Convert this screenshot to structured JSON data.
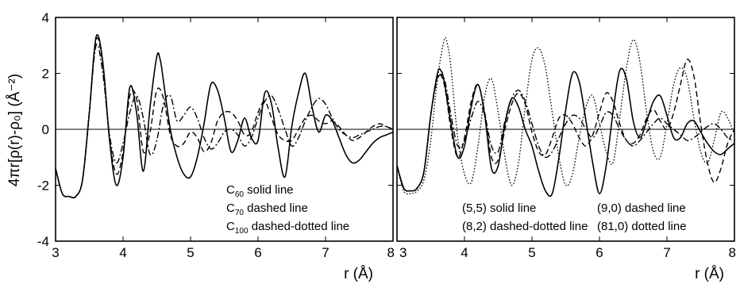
{
  "y_axis_label": "4πr[ρ(r)-ρ₀] (Å⁻²)",
  "chart_data": [
    {
      "type": "line",
      "panel": "left",
      "xlabel": "r (Å)",
      "ylabel": "4πr[ρ(r)-ρ₀] (Å⁻²)",
      "xlim": [
        3,
        8
      ],
      "ylim": [
        -4,
        4
      ],
      "xticks": [
        "3",
        "4",
        "5",
        "6",
        "7",
        "8"
      ],
      "yticks": [
        "-4",
        "-2",
        "0",
        "2",
        "4"
      ],
      "legend_position": "bottom-right",
      "legend": [
        {
          "label_main": "C",
          "label_sub": "60",
          "label_rest": " solid line"
        },
        {
          "label_main": "C",
          "label_sub": "70",
          "label_rest": " dashed line"
        },
        {
          "label_main": "C",
          "label_sub": "100",
          "label_rest": " dashed-dotted line"
        }
      ],
      "series": [
        {
          "style": "solid",
          "x": [
            3.0,
            3.1,
            3.2,
            3.3,
            3.4,
            3.5,
            3.6,
            3.7,
            3.8,
            3.9,
            4.0,
            4.1,
            4.2,
            4.3,
            4.4,
            4.5,
            4.55,
            4.6,
            4.7,
            4.8,
            4.9,
            5.0,
            5.1,
            5.2,
            5.3,
            5.4,
            5.5,
            5.6,
            5.7,
            5.8,
            5.9,
            6.0,
            6.1,
            6.2,
            6.3,
            6.4,
            6.5,
            6.6,
            6.7,
            6.8,
            6.9,
            7.0,
            7.1,
            7.2,
            7.3,
            7.4,
            7.5,
            7.6,
            7.7,
            7.8,
            7.9,
            8.0
          ],
          "y": [
            -1.4,
            -2.3,
            -2.4,
            -2.4,
            -1.8,
            0.6,
            3.3,
            2.4,
            -0.4,
            -2.0,
            -1.0,
            1.5,
            0.6,
            -1.5,
            0.8,
            2.6,
            2.5,
            1.7,
            0.0,
            -1.0,
            -1.6,
            -1.7,
            -1.0,
            0.2,
            1.6,
            1.4,
            0.4,
            -0.8,
            -0.4,
            0.4,
            -0.3,
            -0.4,
            1.3,
            0.9,
            -0.7,
            -1.7,
            0.1,
            1.3,
            2.0,
            0.8,
            -0.1,
            0.5,
            0.3,
            -0.3,
            -0.9,
            -1.2,
            -1.1,
            -0.8,
            -0.5,
            -0.3,
            -0.2,
            -0.1
          ]
        },
        {
          "style": "dashed",
          "x": [
            3.0,
            3.1,
            3.2,
            3.3,
            3.4,
            3.5,
            3.6,
            3.7,
            3.8,
            3.9,
            4.0,
            4.1,
            4.2,
            4.3,
            4.4,
            4.5,
            4.6,
            4.7,
            4.8,
            4.9,
            5.0,
            5.1,
            5.2,
            5.3,
            5.4,
            5.5,
            5.6,
            5.7,
            5.8,
            5.9,
            6.0,
            6.1,
            6.2,
            6.3,
            6.4,
            6.5,
            6.6,
            6.7,
            6.8,
            6.9,
            7.0,
            7.1,
            7.2,
            7.3,
            7.4,
            7.5,
            7.6,
            7.7,
            7.8,
            7.9,
            8.0
          ],
          "y": [
            -1.4,
            -2.3,
            -2.4,
            -2.4,
            -1.8,
            0.6,
            3.2,
            2.3,
            -0.3,
            -1.6,
            -0.8,
            1.2,
            1.1,
            -0.8,
            -0.1,
            1.4,
            1.1,
            -0.2,
            -0.6,
            -0.5,
            -0.1,
            -0.3,
            -0.8,
            -0.5,
            0.3,
            0.6,
            0.6,
            0.3,
            -0.2,
            -0.1,
            0.6,
            1.0,
            0.4,
            -0.2,
            -0.4,
            -0.4,
            0.0,
            0.4,
            0.5,
            0.3,
            0.2,
            0.3,
            0.1,
            -0.2,
            -0.4,
            -0.3,
            -0.1,
            0.1,
            0.2,
            0.1,
            0.0
          ]
        },
        {
          "style": "dashdot",
          "x": [
            3.0,
            3.1,
            3.2,
            3.3,
            3.4,
            3.5,
            3.6,
            3.7,
            3.8,
            3.9,
            4.0,
            4.1,
            4.2,
            4.3,
            4.4,
            4.5,
            4.6,
            4.7,
            4.8,
            4.9,
            5.0,
            5.1,
            5.2,
            5.3,
            5.4,
            5.5,
            5.6,
            5.7,
            5.8,
            5.9,
            6.0,
            6.1,
            6.2,
            6.3,
            6.4,
            6.5,
            6.6,
            6.7,
            6.8,
            6.9,
            7.0,
            7.1,
            7.2,
            7.3,
            7.4,
            7.5,
            7.6,
            7.7,
            7.8,
            7.9,
            8.0
          ],
          "y": [
            -1.4,
            -2.3,
            -2.4,
            -2.4,
            -1.8,
            0.6,
            3.0,
            2.0,
            -0.2,
            -1.2,
            -0.5,
            0.6,
            1.2,
            0.4,
            -0.9,
            -0.4,
            0.9,
            1.2,
            0.3,
            0.5,
            0.8,
            0.4,
            -0.3,
            -0.7,
            -0.5,
            -0.1,
            0.0,
            -0.2,
            -0.6,
            -0.3,
            0.4,
            1.0,
            1.2,
            0.7,
            0.0,
            -0.6,
            -0.3,
            0.3,
            0.8,
            1.1,
            0.9,
            0.4,
            0.0,
            -0.2,
            -0.3,
            -0.2,
            -0.1,
            0.0,
            0.1,
            0.1,
            0.0
          ]
        }
      ]
    },
    {
      "type": "line",
      "panel": "right",
      "xlabel": "r (Å)",
      "xlim": [
        3,
        8
      ],
      "ylim": [
        -4,
        4
      ],
      "xticks": [
        "3",
        "4",
        "5",
        "6",
        "7",
        "8"
      ],
      "legend_position": "bottom",
      "legend": [
        {
          "label": "(5,5) solid line"
        },
        {
          "label": "(9,0) dashed line"
        },
        {
          "label": "(8,2) dashed-dotted line"
        },
        {
          "label": "(81,0) dotted line"
        }
      ],
      "series": [
        {
          "style": "solid",
          "x": [
            3.0,
            3.1,
            3.2,
            3.3,
            3.4,
            3.5,
            3.6,
            3.65,
            3.7,
            3.8,
            3.9,
            4.0,
            4.1,
            4.2,
            4.3,
            4.4,
            4.5,
            4.6,
            4.7,
            4.8,
            4.9,
            5.0,
            5.1,
            5.2,
            5.3,
            5.4,
            5.5,
            5.6,
            5.7,
            5.8,
            5.9,
            6.0,
            6.1,
            6.2,
            6.3,
            6.4,
            6.5,
            6.6,
            6.7,
            6.8,
            6.9,
            7.0,
            7.1,
            7.2,
            7.3,
            7.4,
            7.5,
            7.6,
            7.7,
            7.8,
            7.9,
            8.0
          ],
          "y": [
            -1.3,
            -2.1,
            -2.2,
            -2.1,
            -1.5,
            0.5,
            2.0,
            2.1,
            1.7,
            0.2,
            -1.0,
            -0.6,
            0.8,
            1.6,
            0.5,
            -1.4,
            -1.3,
            0.2,
            1.1,
            0.8,
            0.0,
            -0.6,
            -1.5,
            -2.2,
            -2.3,
            -1.0,
            0.7,
            2.0,
            1.7,
            0.3,
            -1.2,
            -2.3,
            -1.3,
            0.6,
            2.1,
            1.8,
            0.3,
            -0.3,
            0.3,
            1.0,
            1.2,
            0.5,
            -0.3,
            -0.3,
            0.2,
            0.3,
            -0.1,
            -0.5,
            -0.8,
            -0.9,
            -0.7,
            -0.5
          ]
        },
        {
          "style": "dashed",
          "x": [
            3.0,
            3.1,
            3.2,
            3.3,
            3.4,
            3.5,
            3.6,
            3.7,
            3.8,
            3.9,
            4.0,
            4.1,
            4.2,
            4.3,
            4.4,
            4.5,
            4.6,
            4.7,
            4.8,
            4.9,
            5.0,
            5.1,
            5.2,
            5.3,
            5.4,
            5.5,
            5.6,
            5.7,
            5.8,
            5.9,
            6.0,
            6.1,
            6.2,
            6.3,
            6.4,
            6.5,
            6.6,
            6.7,
            6.8,
            6.9,
            7.0,
            7.1,
            7.2,
            7.3,
            7.4,
            7.5,
            7.6,
            7.7,
            7.8,
            7.9,
            8.0
          ],
          "y": [
            -1.3,
            -2.1,
            -2.2,
            -2.1,
            -1.5,
            0.5,
            1.9,
            1.6,
            0.0,
            -1.0,
            -0.3,
            1.0,
            1.6,
            0.6,
            -1.0,
            -1.1,
            0.0,
            0.9,
            1.3,
            0.9,
            -0.1,
            -0.8,
            -0.9,
            -0.3,
            0.4,
            0.5,
            0.2,
            -0.3,
            -0.6,
            -0.2,
            0.6,
            1.3,
            1.0,
            0.2,
            -0.4,
            -0.5,
            -0.2,
            0.4,
            0.7,
            0.3,
            0.0,
            0.6,
            1.6,
            2.5,
            1.9,
            0.2,
            -1.2,
            -1.9,
            -1.4,
            -0.5,
            0.0
          ]
        },
        {
          "style": "dashdot",
          "x": [
            3.0,
            3.1,
            3.2,
            3.3,
            3.4,
            3.5,
            3.6,
            3.7,
            3.8,
            3.9,
            4.0,
            4.1,
            4.2,
            4.3,
            4.4,
            4.5,
            4.6,
            4.7,
            4.8,
            4.9,
            5.0,
            5.1,
            5.2,
            5.3,
            5.4,
            5.5,
            5.6,
            5.7,
            5.8,
            5.9,
            6.0,
            6.1,
            6.2,
            6.3,
            6.4,
            6.5,
            6.6,
            6.7,
            6.8,
            6.9,
            7.0,
            7.1,
            7.2,
            7.3,
            7.4,
            7.5,
            7.6,
            7.7,
            7.8,
            7.9,
            8.0
          ],
          "y": [
            -1.3,
            -2.1,
            -2.2,
            -2.1,
            -1.5,
            0.5,
            1.8,
            1.8,
            0.5,
            -0.6,
            -0.4,
            0.4,
            1.0,
            0.5,
            -0.6,
            -0.8,
            0.3,
            1.1,
            1.4,
            1.0,
            0.2,
            -0.6,
            -1.0,
            -0.8,
            -0.3,
            0.2,
            0.5,
            0.4,
            0.0,
            -0.3,
            0.1,
            0.6,
            0.5,
            0.0,
            -0.4,
            -0.6,
            -0.4,
            -0.1,
            0.2,
            0.4,
            0.2,
            0.0,
            -0.2,
            -0.4,
            -0.3,
            -0.1,
            0.1,
            0.2,
            0.0,
            -0.3,
            -0.4
          ]
        },
        {
          "style": "dotted",
          "x": [
            3.0,
            3.1,
            3.2,
            3.3,
            3.4,
            3.5,
            3.6,
            3.7,
            3.75,
            3.8,
            3.9,
            4.0,
            4.1,
            4.2,
            4.3,
            4.4,
            4.5,
            4.6,
            4.7,
            4.8,
            4.9,
            5.0,
            5.1,
            5.2,
            5.3,
            5.4,
            5.5,
            5.6,
            5.7,
            5.8,
            5.9,
            6.0,
            6.1,
            6.2,
            6.3,
            6.4,
            6.5,
            6.6,
            6.7,
            6.8,
            6.9,
            7.0,
            7.1,
            7.2,
            7.3,
            7.4,
            7.5,
            7.6,
            7.7,
            7.8,
            7.9,
            8.0
          ],
          "y": [
            -1.3,
            -2.2,
            -2.3,
            -2.2,
            -1.8,
            -0.4,
            1.8,
            3.2,
            3.0,
            2.2,
            -0.3,
            -1.6,
            -1.9,
            -0.6,
            1.2,
            1.8,
            0.6,
            -1.0,
            -2.0,
            -1.2,
            0.8,
            2.5,
            2.9,
            2.2,
            0.6,
            -1.0,
            -2.0,
            -1.6,
            -0.3,
            0.8,
            1.2,
            0.2,
            -0.8,
            -1.2,
            0.4,
            2.2,
            3.2,
            2.4,
            0.6,
            -0.8,
            -1.0,
            0.2,
            1.6,
            2.2,
            1.8,
            0.4,
            -0.8,
            -1.2,
            -0.4,
            0.6,
            0.4,
            -0.2
          ]
        }
      ]
    }
  ]
}
